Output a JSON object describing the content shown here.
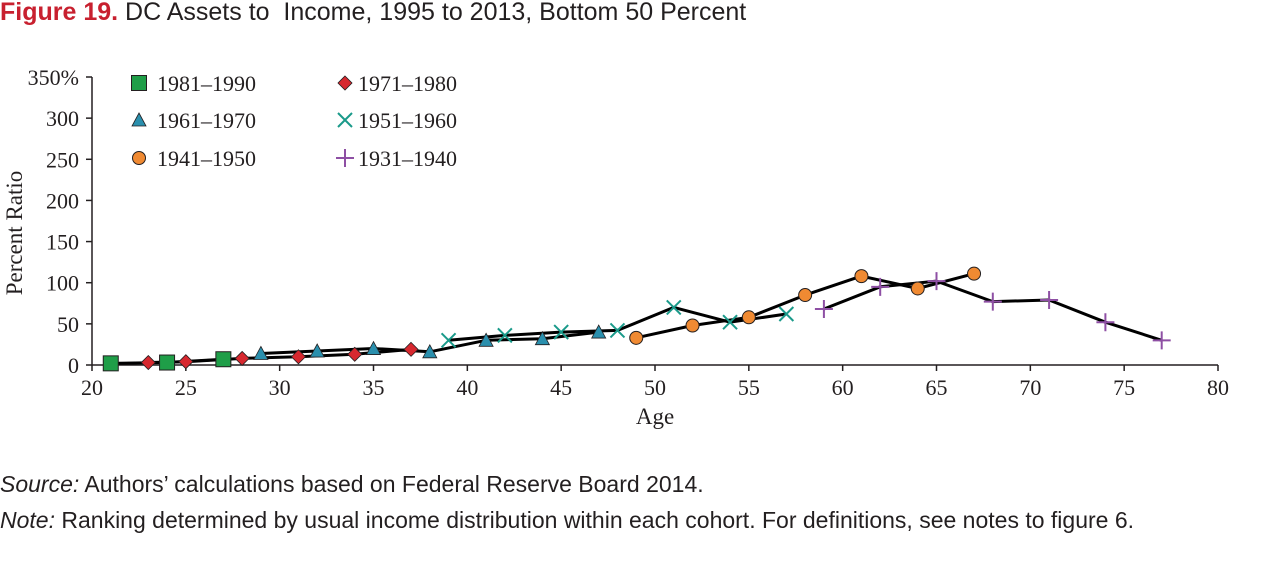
{
  "figure": {
    "label": "Figure 19.",
    "title": "DC Assets to  Income, 1995 to 2013, Bottom 50 Percent"
  },
  "source": {
    "label": "Source:",
    "text": " Authors’ calculations based on Federal Reserve Board 2014."
  },
  "note": {
    "label": "Note:",
    "text": " Ranking determined by usual income distribution within each cohort. For definitions, see notes to figure 6."
  },
  "chart_data": {
    "type": "line",
    "xlabel": "Age",
    "ylabel": "Percent Ratio",
    "xlim": [
      20,
      80
    ],
    "ylim": [
      0,
      350
    ],
    "xticks": [
      20,
      25,
      30,
      35,
      40,
      45,
      50,
      55,
      60,
      65,
      70,
      75,
      80
    ],
    "xtick_labels": [
      "20",
      "25",
      "30",
      "35",
      "40",
      "45",
      "50",
      "55",
      "60",
      "65",
      "70",
      "75",
      "80"
    ],
    "yticks": [
      0,
      50,
      100,
      150,
      200,
      250,
      300,
      350
    ],
    "ytick_labels": [
      "0",
      "50",
      "100",
      "150",
      "200",
      "250",
      "300",
      "350%"
    ],
    "grid": false,
    "legend_position": "top-left",
    "line_color": "#000000",
    "series": [
      {
        "name": "1981–1990",
        "marker": "square",
        "color": "#1f9e48",
        "x": [
          21,
          24,
          27
        ],
        "y": [
          2,
          3,
          7
        ]
      },
      {
        "name": "1971–1980",
        "marker": "diamond",
        "color": "#d7282f",
        "x": [
          23,
          25,
          28,
          31,
          34,
          37
        ],
        "y": [
          3,
          4,
          8,
          10,
          13,
          19
        ]
      },
      {
        "name": "1961–1970",
        "marker": "triangle",
        "color": "#2a8fad",
        "x": [
          29,
          32,
          35,
          38,
          41,
          44,
          47
        ],
        "y": [
          14,
          17,
          20,
          16,
          30,
          32,
          40
        ]
      },
      {
        "name": "1951–1960",
        "marker": "x",
        "color": "#1a9a8a",
        "x": [
          39,
          42,
          45,
          48,
          51,
          54,
          57
        ],
        "y": [
          30,
          36,
          40,
          42,
          70,
          52,
          62
        ]
      },
      {
        "name": "1941–1950",
        "marker": "circle",
        "color": "#f08a32",
        "x": [
          49,
          52,
          55,
          58,
          61,
          64,
          67
        ],
        "y": [
          33,
          48,
          58,
          85,
          108,
          93,
          111
        ]
      },
      {
        "name": "1931–1940",
        "marker": "plus",
        "color": "#8e4fa4",
        "x": [
          59,
          62,
          65,
          68,
          71,
          74,
          77
        ],
        "y": [
          68,
          95,
          102,
          77,
          79,
          52,
          30
        ]
      }
    ]
  }
}
